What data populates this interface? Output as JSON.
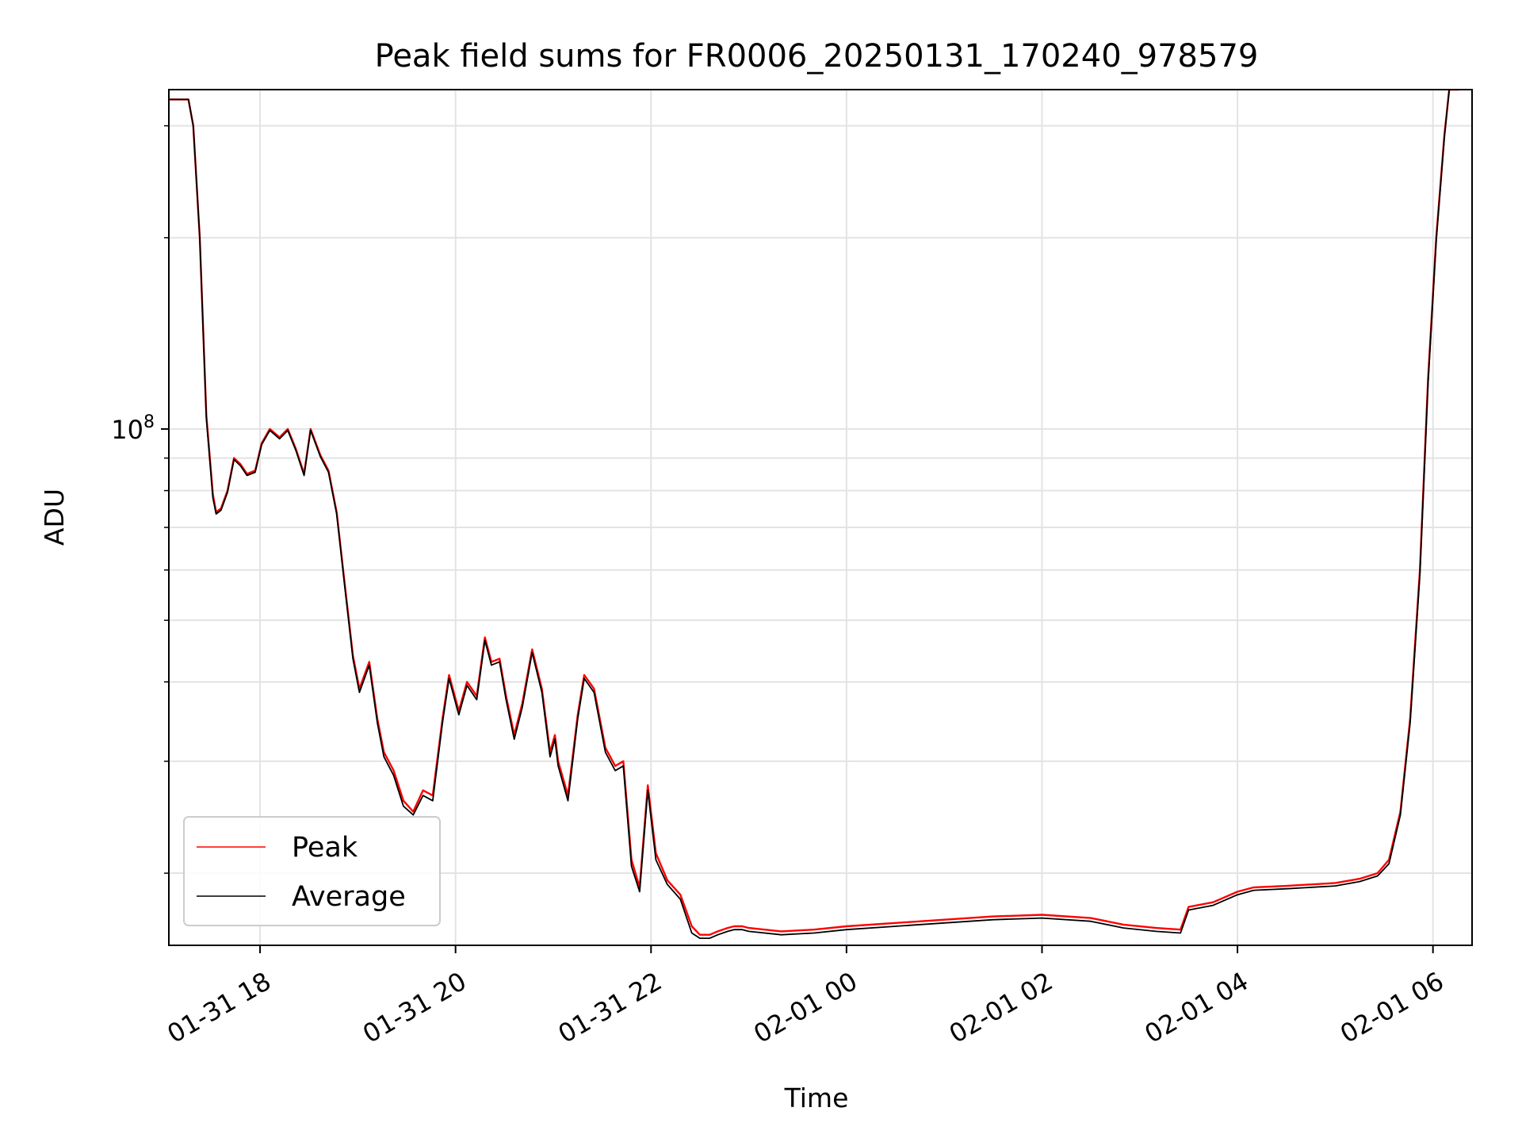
{
  "chart_data": {
    "type": "line",
    "title": "Peak field sums for FR0006_20250131_170240_978579",
    "xlabel": "Time",
    "ylabel": "ADU",
    "yscale": "log",
    "grid": true,
    "legend_position": "lower-left",
    "xlim": [
      "2025-01-31T17:04",
      "2025-02-01T06:24"
    ],
    "ylim": [
      15400000,
      342000000
    ],
    "x_ticks": [
      {
        "label": "01-31 18",
        "value": "2025-01-31T18:00"
      },
      {
        "label": "01-31 20",
        "value": "2025-01-31T20:00"
      },
      {
        "label": "01-31 22",
        "value": "2025-01-31T22:00"
      },
      {
        "label": "02-01 00",
        "value": "2025-02-01T00:00"
      },
      {
        "label": "02-01 02",
        "value": "2025-02-01T02:00"
      },
      {
        "label": "02-01 04",
        "value": "2025-02-01T04:00"
      },
      {
        "label": "02-01 06",
        "value": "2025-02-01T06:00"
      }
    ],
    "y_major_ticks": [
      {
        "label": "10",
        "exponent": "8",
        "value": 100000000
      }
    ],
    "y_minor_ticks": [
      20000000,
      30000000,
      40000000,
      50000000,
      60000000,
      70000000,
      80000000,
      90000000,
      200000000,
      300000000
    ],
    "series": [
      {
        "name": "Peak",
        "color": "#ff0000",
        "x": [
          "2025-01-31T17:04",
          "2025-01-31T17:16",
          "2025-01-31T17:19",
          "2025-01-31T17:23",
          "2025-01-31T17:27",
          "2025-01-31T17:31",
          "2025-01-31T17:33",
          "2025-01-31T17:36",
          "2025-01-31T17:40",
          "2025-01-31T17:44",
          "2025-01-31T17:48",
          "2025-01-31T17:52",
          "2025-01-31T17:57",
          "2025-01-31T18:01",
          "2025-01-31T18:06",
          "2025-01-31T18:12",
          "2025-01-31T18:17",
          "2025-01-31T18:22",
          "2025-01-31T18:27",
          "2025-01-31T18:31",
          "2025-01-31T18:37",
          "2025-01-31T18:42",
          "2025-01-31T18:47",
          "2025-01-31T18:52",
          "2025-01-31T18:57",
          "2025-01-31T19:01",
          "2025-01-31T19:07",
          "2025-01-31T19:12",
          "2025-01-31T19:16",
          "2025-01-31T19:22",
          "2025-01-31T19:28",
          "2025-01-31T19:34",
          "2025-01-31T19:40",
          "2025-01-31T19:46",
          "2025-01-31T19:52",
          "2025-01-31T19:56",
          "2025-01-31T20:02",
          "2025-01-31T20:07",
          "2025-01-31T20:13",
          "2025-01-31T20:18",
          "2025-01-31T20:22",
          "2025-01-31T20:27",
          "2025-01-31T20:31",
          "2025-01-31T20:36",
          "2025-01-31T20:41",
          "2025-01-31T20:47",
          "2025-01-31T20:53",
          "2025-01-31T20:58",
          "2025-01-31T21:01",
          "2025-01-31T21:03",
          "2025-01-31T21:09",
          "2025-01-31T21:15",
          "2025-01-31T21:19",
          "2025-01-31T21:25",
          "2025-01-31T21:32",
          "2025-01-31T21:38",
          "2025-01-31T21:43",
          "2025-01-31T21:48",
          "2025-01-31T21:53",
          "2025-01-31T21:58",
          "2025-01-31T22:03",
          "2025-01-31T22:10",
          "2025-01-31T22:18",
          "2025-01-31T22:25",
          "2025-01-31T22:30",
          "2025-01-31T22:36",
          "2025-01-31T22:41",
          "2025-01-31T22:47",
          "2025-01-31T22:51",
          "2025-01-31T22:56",
          "2025-01-31T23:00",
          "2025-01-31T23:20",
          "2025-01-31T23:40",
          "2025-02-01T00:00",
          "2025-02-01T00:30",
          "2025-02-01T01:00",
          "2025-02-01T01:30",
          "2025-02-01T02:00",
          "2025-02-01T02:30",
          "2025-02-01T02:50",
          "2025-02-01T03:10",
          "2025-02-01T03:25",
          "2025-02-01T03:30",
          "2025-02-01T03:45",
          "2025-02-01T04:00",
          "2025-02-01T04:10",
          "2025-02-01T04:30",
          "2025-02-01T05:00",
          "2025-02-01T05:15",
          "2025-02-01T05:26",
          "2025-02-01T05:33",
          "2025-02-01T05:40",
          "2025-02-01T05:46",
          "2025-02-01T05:52",
          "2025-02-01T05:57",
          "2025-02-01T06:02",
          "2025-02-01T06:07",
          "2025-02-01T06:10",
          "2025-02-01T06:14",
          "2025-02-01T06:16"
        ],
        "values": [
          330000000,
          330000000,
          300000000,
          200000000,
          105000000,
          79000000,
          74000000,
          75000000,
          80000000,
          90000000,
          88000000,
          85000000,
          86000000,
          95000000,
          100000000,
          97000000,
          100000000,
          93000000,
          85000000,
          100000000,
          91000000,
          86000000,
          74000000,
          57000000,
          44000000,
          39000000,
          43000000,
          35000000,
          31000000,
          29000000,
          26000000,
          25000000,
          27000000,
          26500000,
          35000000,
          41000000,
          36000000,
          40000000,
          38000000,
          47000000,
          43000000,
          43500000,
          38000000,
          33000000,
          37000000,
          45000000,
          39000000,
          31000000,
          33000000,
          30000000,
          26500000,
          35500000,
          41000000,
          39000000,
          31500000,
          29500000,
          30000000,
          21000000,
          19000000,
          27500000,
          21500000,
          19500000,
          18500000,
          16500000,
          16000000,
          16000000,
          16200000,
          16400000,
          16500000,
          16500000,
          16400000,
          16200000,
          16300000,
          16500000,
          16700000,
          16900000,
          17100000,
          17200000,
          17000000,
          16600000,
          16400000,
          16300000,
          17700000,
          18000000,
          18700000,
          19000000,
          19100000,
          19300000,
          19600000,
          20000000,
          21000000,
          25000000,
          35000000,
          60000000,
          120000000,
          200000000,
          290000000,
          342000000,
          342000000,
          342000000
        ]
      },
      {
        "name": "Average",
        "color": "#000000",
        "x": [
          "2025-01-31T17:04",
          "2025-01-31T17:16",
          "2025-01-31T17:19",
          "2025-01-31T17:23",
          "2025-01-31T17:27",
          "2025-01-31T17:31",
          "2025-01-31T17:33",
          "2025-01-31T17:36",
          "2025-01-31T17:40",
          "2025-01-31T17:44",
          "2025-01-31T17:48",
          "2025-01-31T17:52",
          "2025-01-31T17:57",
          "2025-01-31T18:01",
          "2025-01-31T18:06",
          "2025-01-31T18:12",
          "2025-01-31T18:17",
          "2025-01-31T18:22",
          "2025-01-31T18:27",
          "2025-01-31T18:31",
          "2025-01-31T18:37",
          "2025-01-31T18:42",
          "2025-01-31T18:47",
          "2025-01-31T18:52",
          "2025-01-31T18:57",
          "2025-01-31T19:01",
          "2025-01-31T19:07",
          "2025-01-31T19:12",
          "2025-01-31T19:16",
          "2025-01-31T19:22",
          "2025-01-31T19:28",
          "2025-01-31T19:34",
          "2025-01-31T19:40",
          "2025-01-31T19:46",
          "2025-01-31T19:52",
          "2025-01-31T19:56",
          "2025-01-31T20:02",
          "2025-01-31T20:07",
          "2025-01-31T20:13",
          "2025-01-31T20:18",
          "2025-01-31T20:22",
          "2025-01-31T20:27",
          "2025-01-31T20:31",
          "2025-01-31T20:36",
          "2025-01-31T20:41",
          "2025-01-31T20:47",
          "2025-01-31T20:53",
          "2025-01-31T20:58",
          "2025-01-31T21:01",
          "2025-01-31T21:03",
          "2025-01-31T21:09",
          "2025-01-31T21:15",
          "2025-01-31T21:19",
          "2025-01-31T21:25",
          "2025-01-31T21:32",
          "2025-01-31T21:38",
          "2025-01-31T21:43",
          "2025-01-31T21:48",
          "2025-01-31T21:53",
          "2025-01-31T21:58",
          "2025-01-31T22:03",
          "2025-01-31T22:10",
          "2025-01-31T22:18",
          "2025-01-31T22:25",
          "2025-01-31T22:30",
          "2025-01-31T22:36",
          "2025-01-31T22:41",
          "2025-01-31T22:47",
          "2025-01-31T22:51",
          "2025-01-31T22:56",
          "2025-01-31T23:00",
          "2025-01-31T23:20",
          "2025-01-31T23:40",
          "2025-02-01T00:00",
          "2025-02-01T00:30",
          "2025-02-01T01:00",
          "2025-02-01T01:30",
          "2025-02-01T02:00",
          "2025-02-01T02:30",
          "2025-02-01T02:50",
          "2025-02-01T03:10",
          "2025-02-01T03:25",
          "2025-02-01T03:30",
          "2025-02-01T03:45",
          "2025-02-01T04:00",
          "2025-02-01T04:10",
          "2025-02-01T04:30",
          "2025-02-01T05:00",
          "2025-02-01T05:15",
          "2025-02-01T05:26",
          "2025-02-01T05:33",
          "2025-02-01T05:40",
          "2025-02-01T05:46",
          "2025-02-01T05:52",
          "2025-02-01T05:57",
          "2025-02-01T06:02",
          "2025-02-01T06:07",
          "2025-02-01T06:10",
          "2025-02-01T06:14",
          "2025-02-01T06:16"
        ],
        "values": [
          330000000,
          330000000,
          300000000,
          200000000,
          104000000,
          78000000,
          73500000,
          74500000,
          79500000,
          89500000,
          87500000,
          84500000,
          85500000,
          94500000,
          99500000,
          96500000,
          99500000,
          92500000,
          84500000,
          99500000,
          90500000,
          85500000,
          73500000,
          56500000,
          43500000,
          38500000,
          42500000,
          34500000,
          30500000,
          28500000,
          25500000,
          24700000,
          26500000,
          26000000,
          34500000,
          40500000,
          35500000,
          39500000,
          37500000,
          46500000,
          42500000,
          43000000,
          37500000,
          32500000,
          36500000,
          44500000,
          38500000,
          30500000,
          32500000,
          29500000,
          26000000,
          35000000,
          40500000,
          38500000,
          31000000,
          29000000,
          29500000,
          20500000,
          18700000,
          27000000,
          21000000,
          19200000,
          18200000,
          16100000,
          15800000,
          15800000,
          16000000,
          16200000,
          16300000,
          16300000,
          16200000,
          16000000,
          16100000,
          16300000,
          16500000,
          16700000,
          16900000,
          17000000,
          16800000,
          16400000,
          16200000,
          16100000,
          17500000,
          17800000,
          18500000,
          18800000,
          18900000,
          19100000,
          19400000,
          19800000,
          20700000,
          24700000,
          34500000,
          59000000,
          118000000,
          198000000,
          288000000,
          342000000,
          342000000,
          342000000
        ]
      }
    ]
  }
}
